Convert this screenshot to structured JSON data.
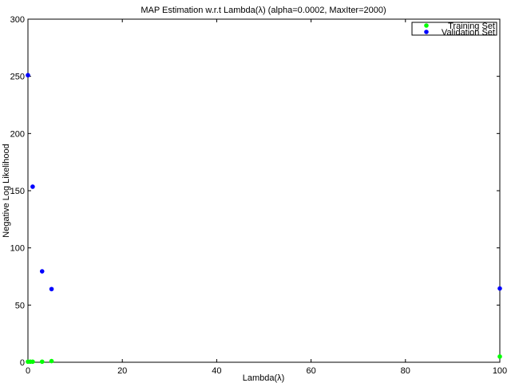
{
  "chart_data": {
    "type": "scatter",
    "title": "MAP Estimation w.r.t Lambda(λ) (alpha=0.0002, MaxIter=2000)",
    "xlabel": "Lambda(λ)",
    "ylabel": "Negative Log Likelihood",
    "xlim": [
      0,
      100
    ],
    "ylim": [
      0,
      300
    ],
    "xticks": [
      0,
      20,
      40,
      60,
      80,
      100
    ],
    "yticks": [
      0,
      50,
      100,
      150,
      200,
      250,
      300
    ],
    "grid": false,
    "legend_position": "top-right",
    "series": [
      {
        "name": "Training Set",
        "color": "#00ff00",
        "x": [
          0,
          0.5,
          1,
          3,
          5,
          100
        ],
        "y": [
          0.5,
          0.5,
          0.5,
          0.5,
          1,
          5
        ]
      },
      {
        "name": "Validation Set",
        "color": "#0000ff",
        "x": [
          0,
          1,
          3,
          5,
          100
        ],
        "y": [
          251,
          153.5,
          79.5,
          64,
          64.5
        ]
      }
    ]
  }
}
